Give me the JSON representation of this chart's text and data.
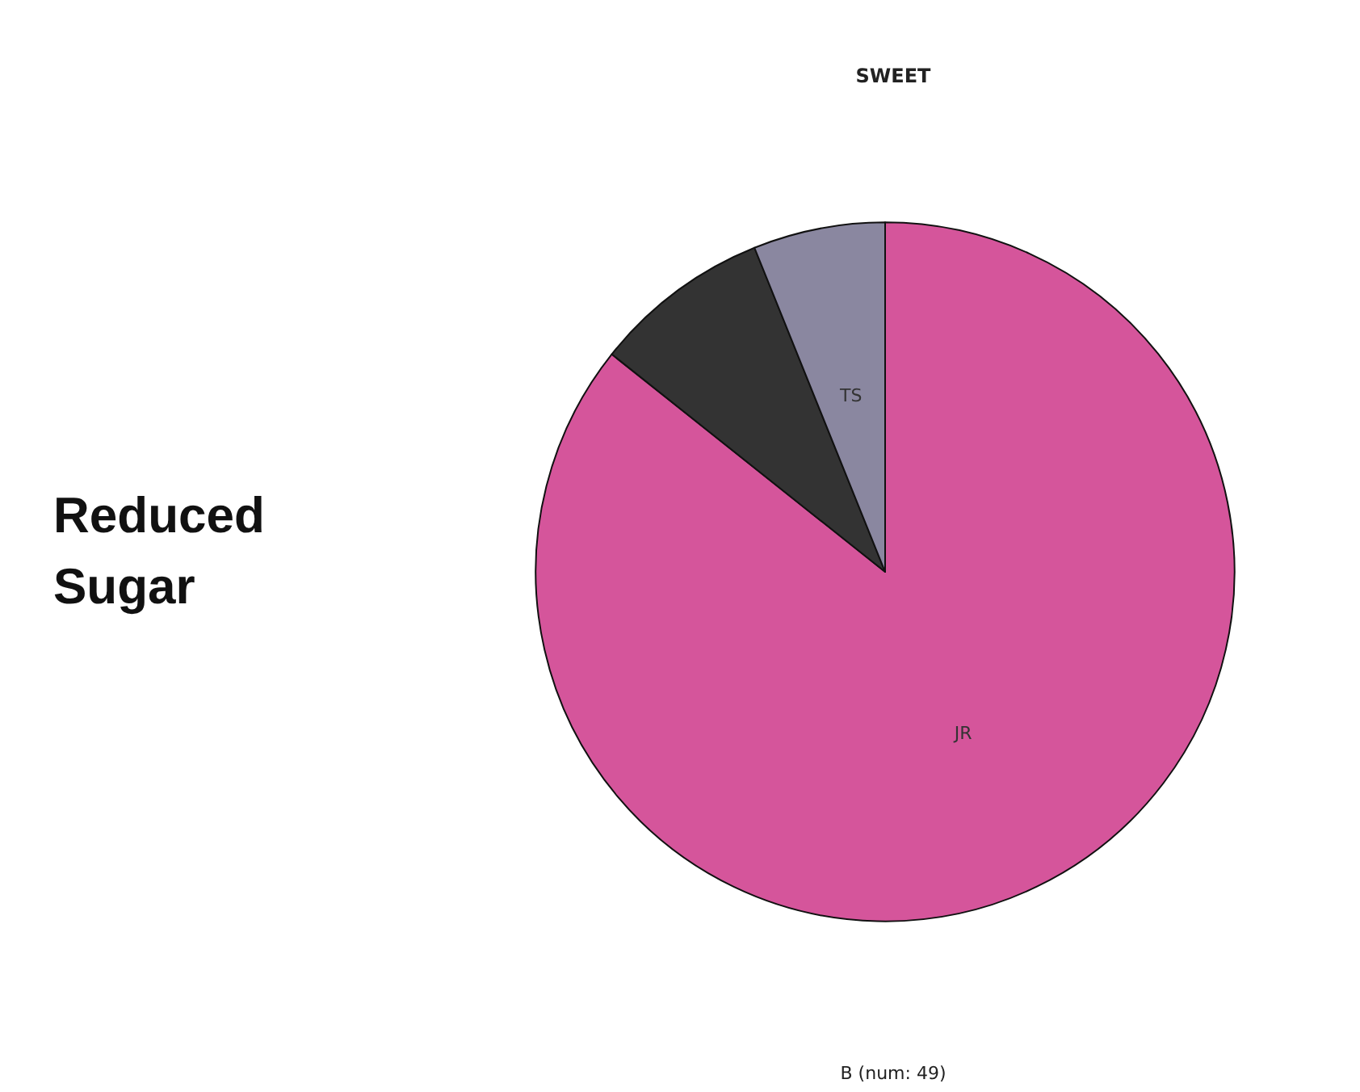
{
  "chart_data": {
    "type": "pie",
    "title": "SWEET",
    "xlabel": "B (num: 49)",
    "ylabel": "Reduced Sugar",
    "categories": [
      "JR",
      null,
      "TS"
    ],
    "values": [
      85.7,
      8.2,
      6.1
    ],
    "colors": [
      "#d5559b",
      "#333333",
      "#8a87a0"
    ]
  }
}
